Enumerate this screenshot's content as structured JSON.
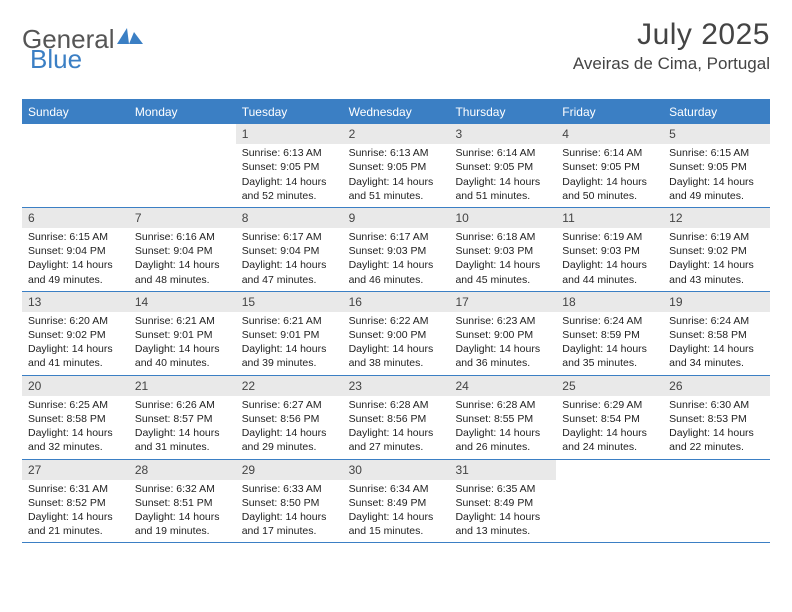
{
  "logo": {
    "text1": "General",
    "text2": "Blue"
  },
  "title": "July 2025",
  "location": "Aveiras de Cima, Portugal",
  "colors": {
    "accent": "#3b7fc4",
    "daynum_bg": "#e9e9e9",
    "text": "#333333",
    "header_text": "#ffffff",
    "background": "#ffffff"
  },
  "day_headers": [
    "Sunday",
    "Monday",
    "Tuesday",
    "Wednesday",
    "Thursday",
    "Friday",
    "Saturday"
  ],
  "weeks": [
    [
      {
        "n": "",
        "lines": [
          "",
          "",
          "",
          ""
        ]
      },
      {
        "n": "",
        "lines": [
          "",
          "",
          "",
          ""
        ]
      },
      {
        "n": "1",
        "lines": [
          "Sunrise: 6:13 AM",
          "Sunset: 9:05 PM",
          "Daylight: 14 hours",
          "and 52 minutes."
        ]
      },
      {
        "n": "2",
        "lines": [
          "Sunrise: 6:13 AM",
          "Sunset: 9:05 PM",
          "Daylight: 14 hours",
          "and 51 minutes."
        ]
      },
      {
        "n": "3",
        "lines": [
          "Sunrise: 6:14 AM",
          "Sunset: 9:05 PM",
          "Daylight: 14 hours",
          "and 51 minutes."
        ]
      },
      {
        "n": "4",
        "lines": [
          "Sunrise: 6:14 AM",
          "Sunset: 9:05 PM",
          "Daylight: 14 hours",
          "and 50 minutes."
        ]
      },
      {
        "n": "5",
        "lines": [
          "Sunrise: 6:15 AM",
          "Sunset: 9:05 PM",
          "Daylight: 14 hours",
          "and 49 minutes."
        ]
      }
    ],
    [
      {
        "n": "6",
        "lines": [
          "Sunrise: 6:15 AM",
          "Sunset: 9:04 PM",
          "Daylight: 14 hours",
          "and 49 minutes."
        ]
      },
      {
        "n": "7",
        "lines": [
          "Sunrise: 6:16 AM",
          "Sunset: 9:04 PM",
          "Daylight: 14 hours",
          "and 48 minutes."
        ]
      },
      {
        "n": "8",
        "lines": [
          "Sunrise: 6:17 AM",
          "Sunset: 9:04 PM",
          "Daylight: 14 hours",
          "and 47 minutes."
        ]
      },
      {
        "n": "9",
        "lines": [
          "Sunrise: 6:17 AM",
          "Sunset: 9:03 PM",
          "Daylight: 14 hours",
          "and 46 minutes."
        ]
      },
      {
        "n": "10",
        "lines": [
          "Sunrise: 6:18 AM",
          "Sunset: 9:03 PM",
          "Daylight: 14 hours",
          "and 45 minutes."
        ]
      },
      {
        "n": "11",
        "lines": [
          "Sunrise: 6:19 AM",
          "Sunset: 9:03 PM",
          "Daylight: 14 hours",
          "and 44 minutes."
        ]
      },
      {
        "n": "12",
        "lines": [
          "Sunrise: 6:19 AM",
          "Sunset: 9:02 PM",
          "Daylight: 14 hours",
          "and 43 minutes."
        ]
      }
    ],
    [
      {
        "n": "13",
        "lines": [
          "Sunrise: 6:20 AM",
          "Sunset: 9:02 PM",
          "Daylight: 14 hours",
          "and 41 minutes."
        ]
      },
      {
        "n": "14",
        "lines": [
          "Sunrise: 6:21 AM",
          "Sunset: 9:01 PM",
          "Daylight: 14 hours",
          "and 40 minutes."
        ]
      },
      {
        "n": "15",
        "lines": [
          "Sunrise: 6:21 AM",
          "Sunset: 9:01 PM",
          "Daylight: 14 hours",
          "and 39 minutes."
        ]
      },
      {
        "n": "16",
        "lines": [
          "Sunrise: 6:22 AM",
          "Sunset: 9:00 PM",
          "Daylight: 14 hours",
          "and 38 minutes."
        ]
      },
      {
        "n": "17",
        "lines": [
          "Sunrise: 6:23 AM",
          "Sunset: 9:00 PM",
          "Daylight: 14 hours",
          "and 36 minutes."
        ]
      },
      {
        "n": "18",
        "lines": [
          "Sunrise: 6:24 AM",
          "Sunset: 8:59 PM",
          "Daylight: 14 hours",
          "and 35 minutes."
        ]
      },
      {
        "n": "19",
        "lines": [
          "Sunrise: 6:24 AM",
          "Sunset: 8:58 PM",
          "Daylight: 14 hours",
          "and 34 minutes."
        ]
      }
    ],
    [
      {
        "n": "20",
        "lines": [
          "Sunrise: 6:25 AM",
          "Sunset: 8:58 PM",
          "Daylight: 14 hours",
          "and 32 minutes."
        ]
      },
      {
        "n": "21",
        "lines": [
          "Sunrise: 6:26 AM",
          "Sunset: 8:57 PM",
          "Daylight: 14 hours",
          "and 31 minutes."
        ]
      },
      {
        "n": "22",
        "lines": [
          "Sunrise: 6:27 AM",
          "Sunset: 8:56 PM",
          "Daylight: 14 hours",
          "and 29 minutes."
        ]
      },
      {
        "n": "23",
        "lines": [
          "Sunrise: 6:28 AM",
          "Sunset: 8:56 PM",
          "Daylight: 14 hours",
          "and 27 minutes."
        ]
      },
      {
        "n": "24",
        "lines": [
          "Sunrise: 6:28 AM",
          "Sunset: 8:55 PM",
          "Daylight: 14 hours",
          "and 26 minutes."
        ]
      },
      {
        "n": "25",
        "lines": [
          "Sunrise: 6:29 AM",
          "Sunset: 8:54 PM",
          "Daylight: 14 hours",
          "and 24 minutes."
        ]
      },
      {
        "n": "26",
        "lines": [
          "Sunrise: 6:30 AM",
          "Sunset: 8:53 PM",
          "Daylight: 14 hours",
          "and 22 minutes."
        ]
      }
    ],
    [
      {
        "n": "27",
        "lines": [
          "Sunrise: 6:31 AM",
          "Sunset: 8:52 PM",
          "Daylight: 14 hours",
          "and 21 minutes."
        ]
      },
      {
        "n": "28",
        "lines": [
          "Sunrise: 6:32 AM",
          "Sunset: 8:51 PM",
          "Daylight: 14 hours",
          "and 19 minutes."
        ]
      },
      {
        "n": "29",
        "lines": [
          "Sunrise: 6:33 AM",
          "Sunset: 8:50 PM",
          "Daylight: 14 hours",
          "and 17 minutes."
        ]
      },
      {
        "n": "30",
        "lines": [
          "Sunrise: 6:34 AM",
          "Sunset: 8:49 PM",
          "Daylight: 14 hours",
          "and 15 minutes."
        ]
      },
      {
        "n": "31",
        "lines": [
          "Sunrise: 6:35 AM",
          "Sunset: 8:49 PM",
          "Daylight: 14 hours",
          "and 13 minutes."
        ]
      },
      {
        "n": "",
        "lines": [
          "",
          "",
          "",
          ""
        ]
      },
      {
        "n": "",
        "lines": [
          "",
          "",
          "",
          ""
        ]
      }
    ]
  ]
}
